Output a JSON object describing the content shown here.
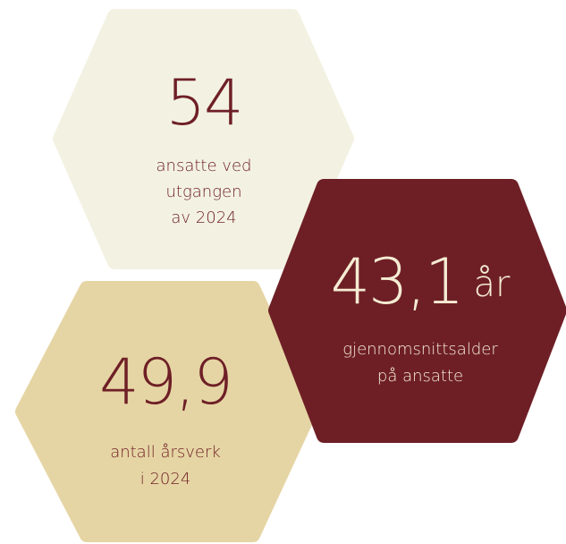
{
  "stats": [
    {
      "value": "54",
      "label": [
        "ansatte ved",
        "utgangen",
        "av 2024"
      ]
    },
    {
      "value": "43,1",
      "unit": "år",
      "label": [
        "gjennomsnittsalder",
        "på ansatte"
      ]
    },
    {
      "value": "49,9",
      "label": [
        "antall årsverk",
        "i 2024"
      ]
    }
  ]
}
